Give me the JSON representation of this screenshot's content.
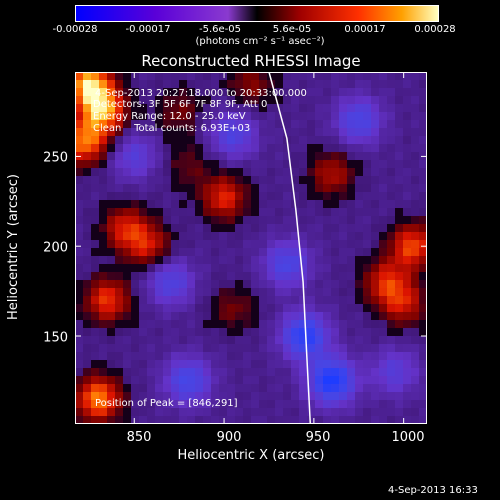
{
  "colorbar": {
    "ticks": [
      "-0.00028",
      "-0.00017",
      "-5.6e-05",
      "5.6e-05",
      "0.00017",
      "0.00028"
    ],
    "units": "(photons cm⁻² s⁻¹ asec⁻²)"
  },
  "title": "Reconstructed RHESSI Image",
  "annotations": {
    "time": "4-Sep-2013 20:27:18.000 to 20:33:00.000",
    "detectors": "Detectors: 3F 5F 6F 7F 8F 9F, Att 0",
    "energy": "Energy Range: 12.0 - 25.0 keV",
    "clean": "Clean    Total counts: 6.93E+03",
    "peak": "Position of Peak = [846,291]"
  },
  "timestamp": "4-Sep-2013 16:33",
  "chart_data": {
    "type": "heatmap",
    "title": "Reconstructed RHESSI Image",
    "xlabel": "Heliocentric X (arcsec)",
    "ylabel": "Heliocentric Y (arcsec)",
    "xlim": [
      817,
      1013
    ],
    "ylim": [
      101,
      297
    ],
    "xticks": [
      850,
      900,
      950,
      1000
    ],
    "yticks": [
      150,
      200,
      250
    ],
    "colorbar_range": [
      -0.00028,
      0.00028
    ],
    "peak": [
      846,
      291
    ],
    "limb_curve": [
      [
        925,
        297
      ],
      [
        935,
        260
      ],
      [
        940,
        220
      ],
      [
        944,
        180
      ],
      [
        946,
        140
      ],
      [
        948,
        101
      ]
    ],
    "hotspots": [
      {
        "x": 825,
        "y": 290,
        "v": 1.0
      },
      {
        "x": 833,
        "y": 275,
        "v": 0.85
      },
      {
        "x": 822,
        "y": 258,
        "v": 0.8
      },
      {
        "x": 900,
        "y": 227,
        "v": 0.6
      },
      {
        "x": 858,
        "y": 200,
        "v": 0.5
      },
      {
        "x": 845,
        "y": 210,
        "v": 0.55
      },
      {
        "x": 835,
        "y": 170,
        "v": 0.65
      },
      {
        "x": 830,
        "y": 115,
        "v": 0.85
      },
      {
        "x": 1005,
        "y": 200,
        "v": 0.7
      },
      {
        "x": 990,
        "y": 180,
        "v": 0.55
      },
      {
        "x": 1000,
        "y": 168,
        "v": 0.5
      },
      {
        "x": 960,
        "y": 240,
        "v": 0.45
      },
      {
        "x": 915,
        "y": 290,
        "v": 0.35
      },
      {
        "x": 875,
        "y": 275,
        "v": 0.3
      },
      {
        "x": 905,
        "y": 165,
        "v": 0.3
      },
      {
        "x": 880,
        "y": 245,
        "v": 0.25
      }
    ],
    "coldspots": [
      {
        "x": 960,
        "y": 125,
        "v": -0.9
      },
      {
        "x": 945,
        "y": 150,
        "v": -0.8
      },
      {
        "x": 880,
        "y": 125,
        "v": -0.6
      },
      {
        "x": 870,
        "y": 180,
        "v": -0.5
      },
      {
        "x": 935,
        "y": 190,
        "v": -0.55
      },
      {
        "x": 975,
        "y": 270,
        "v": -0.55
      },
      {
        "x": 850,
        "y": 250,
        "v": -0.4
      },
      {
        "x": 905,
        "y": 262,
        "v": -0.5
      },
      {
        "x": 995,
        "y": 130,
        "v": -0.4
      }
    ]
  },
  "axes": {
    "xticks": [
      "850",
      "900",
      "950",
      "1000"
    ],
    "yticks": [
      "150",
      "200",
      "250"
    ],
    "xlabel": "Heliocentric X (arcsec)",
    "ylabel": "Heliocentric Y (arcsec)"
  }
}
